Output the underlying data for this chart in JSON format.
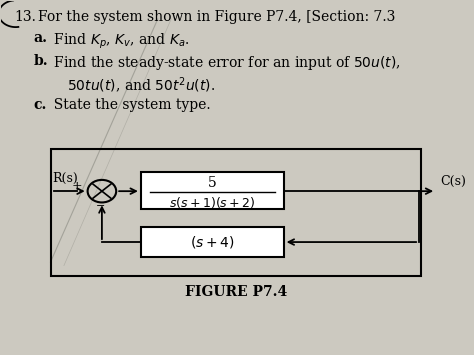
{
  "title_num": "13.",
  "title_text": "For the system shown in Figure P7.4, [Section: 7.3",
  "line_a_bold": "a.",
  "line_a_rest": "  Find $K_p$, $K_v$, and $K_a$.",
  "line_b_bold": "b.",
  "line_b1_rest": "  Find the steady-state error for an input of $50u(t)$,",
  "line_b2_rest": "     $50tu(t)$, and $50t^2u(t)$.",
  "line_c_bold": "c.",
  "line_c_rest": "  State the system type.",
  "forward_tf_top": "5",
  "forward_tf_bottom": "$s(s + 1)(s+2)$",
  "feedback_tf": "$(s + 4)$",
  "input_label": "R(s)",
  "output_label": "C(s)",
  "figure_label": "FIGURE P7.4",
  "bg_color": "#ccc9c0",
  "box_color": "#ffffff",
  "text_color": "#000000",
  "line_color": "#000000"
}
